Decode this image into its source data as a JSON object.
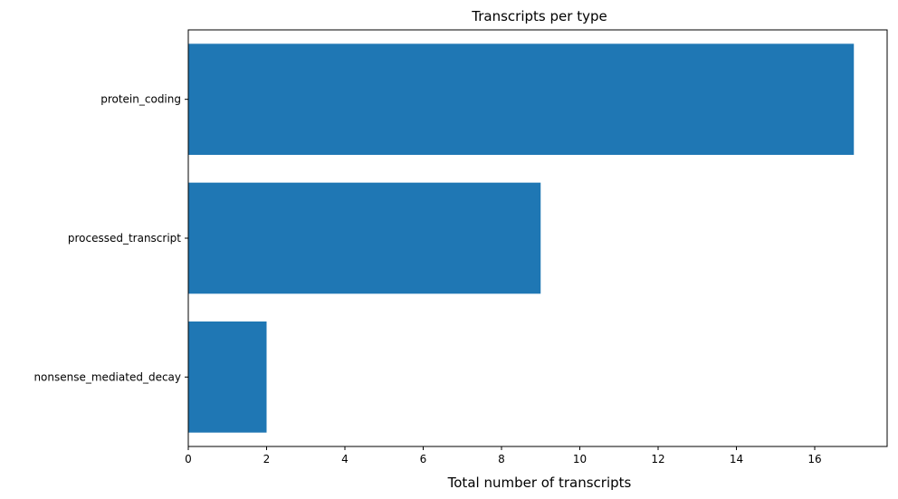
{
  "chart_data": {
    "type": "bar",
    "orientation": "horizontal",
    "title": "Transcripts per type",
    "xlabel": "Total number of transcripts",
    "ylabel": "",
    "categories": [
      "protein_coding",
      "processed_transcript",
      "nonsense_mediated_decay"
    ],
    "values": [
      17,
      9,
      2
    ],
    "xlim": [
      0,
      17.85
    ],
    "xticks": [
      0,
      2,
      4,
      6,
      8,
      10,
      12,
      14,
      16
    ],
    "grid": false,
    "legend": "none",
    "bar_color": "#1f77b4"
  }
}
